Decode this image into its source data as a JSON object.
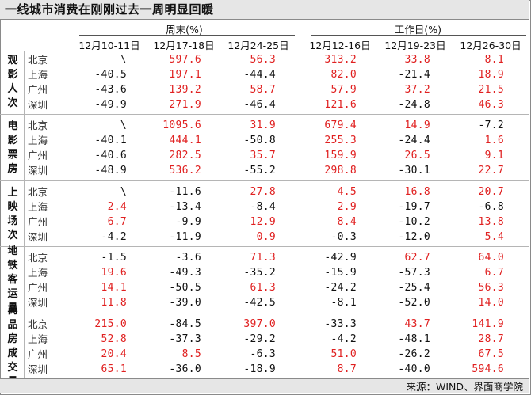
{
  "title": "一线城市消费在刚刚过去一周明显回暖",
  "source": "来源：WIND、界面商学院",
  "chart_data": {
    "type": "table",
    "groups": [
      {
        "label": "周末(%)",
        "columns": [
          "12月10-11日",
          "12月17-18日",
          "12月24-25日"
        ]
      },
      {
        "label": "工作日(%)",
        "columns": [
          "12月12-16日",
          "12月19-23日",
          "12月26-30日"
        ]
      }
    ],
    "columns": [
      "12月10-11日",
      "12月17-18日",
      "12月24-25日",
      "12月12-16日",
      "12月19-23日",
      "12月26-30日"
    ],
    "cities": [
      "北京",
      "上海",
      "广州",
      "深圳"
    ],
    "metrics": [
      {
        "name": "观影人次",
        "rows": [
          [
            "\\",
            "597.6",
            "56.3",
            "313.2",
            "33.8",
            "8.1"
          ],
          [
            "-40.5",
            "197.1",
            "-44.4",
            "82.0",
            "-21.4",
            "18.9"
          ],
          [
            "-43.6",
            "139.2",
            "58.7",
            "57.9",
            "37.2",
            "21.5"
          ],
          [
            "-49.9",
            "271.9",
            "-46.4",
            "121.6",
            "-24.8",
            "46.3"
          ]
        ]
      },
      {
        "name": "电影票房",
        "rows": [
          [
            "\\",
            "1095.6",
            "31.9",
            "679.4",
            "14.9",
            "-7.2"
          ],
          [
            "-40.1",
            "444.1",
            "-50.8",
            "255.3",
            "-24.4",
            "1.6"
          ],
          [
            "-40.6",
            "282.5",
            "35.7",
            "159.9",
            "26.5",
            "9.1"
          ],
          [
            "-48.9",
            "536.2",
            "-55.2",
            "298.8",
            "-30.1",
            "22.7"
          ]
        ]
      },
      {
        "name": "上映场次",
        "rows": [
          [
            "\\",
            "-11.6",
            "27.8",
            "4.5",
            "16.8",
            "20.7"
          ],
          [
            "2.4",
            "-13.4",
            "-8.4",
            "2.9",
            "-19.7",
            "-6.8"
          ],
          [
            "6.7",
            "-9.9",
            "12.9",
            "8.4",
            "-10.2",
            "13.8"
          ],
          [
            "-4.2",
            "-11.9",
            "0.9",
            "-0.3",
            "-12.0",
            "5.4"
          ]
        ]
      },
      {
        "name": "地铁客运量",
        "rows": [
          [
            "-1.5",
            "-3.6",
            "71.3",
            "-42.9",
            "62.7",
            "64.0"
          ],
          [
            "19.6",
            "-49.3",
            "-35.2",
            "-15.9",
            "-57.3",
            "6.7"
          ],
          [
            "14.1",
            "-50.5",
            "61.3",
            "-24.2",
            "-25.4",
            "56.3"
          ],
          [
            "11.8",
            "-39.0",
            "-42.5",
            "-8.1",
            "-52.0",
            "14.0"
          ]
        ]
      },
      {
        "name": "商品房成交量",
        "rows": [
          [
            "215.0",
            "-84.5",
            "397.0",
            "-33.3",
            "43.7",
            "141.9"
          ],
          [
            "52.8",
            "-37.3",
            "-29.2",
            "-4.2",
            "-48.1",
            "28.7"
          ],
          [
            "20.4",
            "8.5",
            "-6.3",
            "51.0",
            "-26.2",
            "67.5"
          ],
          [
            "65.1",
            "-36.0",
            "-18.9",
            "8.7",
            "-40.0",
            "594.6"
          ]
        ]
      }
    ],
    "colors": {
      "positive": "#e02020",
      "negative": "#111111"
    }
  }
}
